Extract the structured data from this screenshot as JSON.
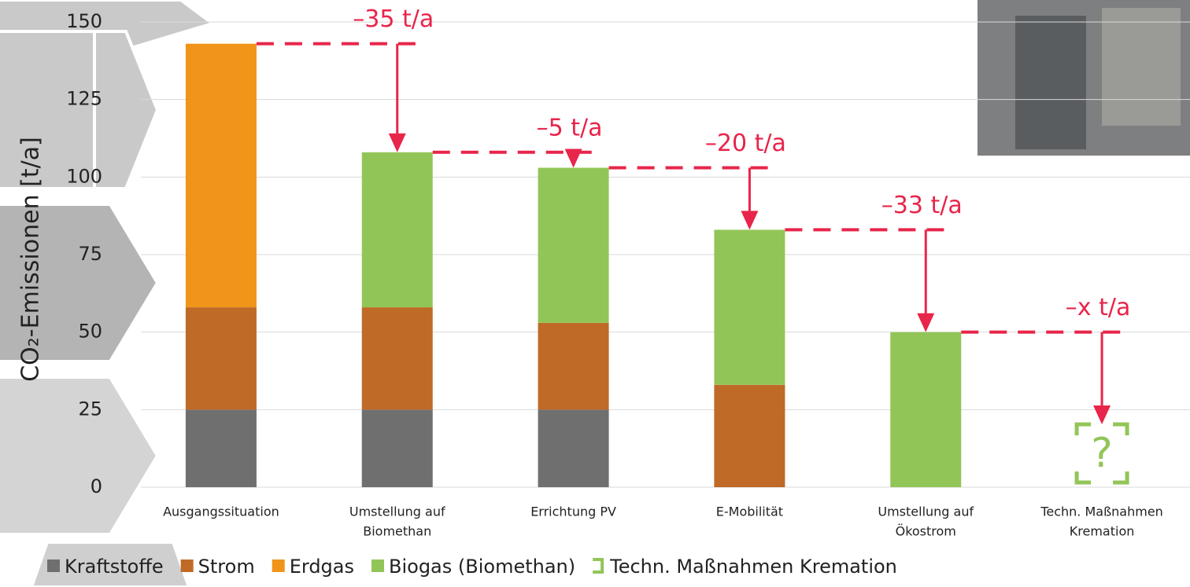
{
  "chart_data": {
    "type": "stacked_bar",
    "y_axis_label": "CO₂-Emissionen [t/a]",
    "categories": [
      [
        "Ausgangssituation"
      ],
      [
        "Umstellung auf",
        "Biomethan"
      ],
      [
        "Errichtung PV"
      ],
      [
        "E-Mobilität"
      ],
      [
        "Umstellung auf",
        "Ökostrom"
      ],
      [
        "Techn. Maßnahmen",
        "Kremation"
      ]
    ],
    "series": [
      {
        "name": "Kraftstoffe",
        "color": "#6f6f6f",
        "values": [
          25,
          25,
          25,
          0,
          0,
          null
        ]
      },
      {
        "name": "Strom",
        "color": "#bf6a27",
        "values": [
          33,
          33,
          28,
          33,
          0,
          null
        ]
      },
      {
        "name": "Erdgas",
        "color": "#f0941a",
        "values": [
          85,
          0,
          0,
          0,
          0,
          null
        ]
      },
      {
        "name": "Biogas (Biomethan)",
        "color": "#92c557",
        "values": [
          0,
          50,
          50,
          50,
          50,
          null
        ]
      },
      {
        "name": "Techn. Maßnahmen Kremation",
        "color": "#92c557",
        "values": [
          null,
          null,
          null,
          null,
          null,
          null
        ]
      }
    ],
    "reductions": [
      "–35 t/a",
      "–5 t/a",
      "–20 t/a",
      "–33 t/a",
      "–x t/a"
    ],
    "placeholder": "?",
    "ylim": [
      0,
      150
    ],
    "yticks": [
      0,
      25,
      50,
      75,
      100,
      125,
      150
    ],
    "grid": true
  }
}
